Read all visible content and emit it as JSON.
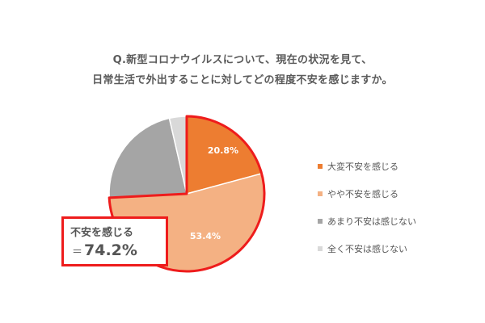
{
  "chart_data": {
    "type": "pie",
    "title_lines": [
      "Q.新型コロナウイルスについて、現在の状況を見て、",
      "日常生活で外出することに対してどの程度不安を感じますか。"
    ],
    "slices": [
      {
        "label": "大変不安を感じる",
        "value": 20.8,
        "value_label": "20.8%",
        "color": "#ed7d31"
      },
      {
        "label": "やや不安を感じる",
        "value": 53.4,
        "value_label": "53.4%",
        "color": "#f4b183"
      },
      {
        "label": "あまり不安は感じない",
        "value": 22.2,
        "value_label": "",
        "color": "#a5a5a5"
      },
      {
        "label": "全く不安は感じない",
        "value": 3.6,
        "value_label": "",
        "color": "#d9d9d9"
      }
    ],
    "legend_position": "right",
    "highlight": {
      "label": "不安を感じる",
      "prefix": "＝",
      "value": "74.2%",
      "outline_color": "#ee1c1c"
    }
  }
}
